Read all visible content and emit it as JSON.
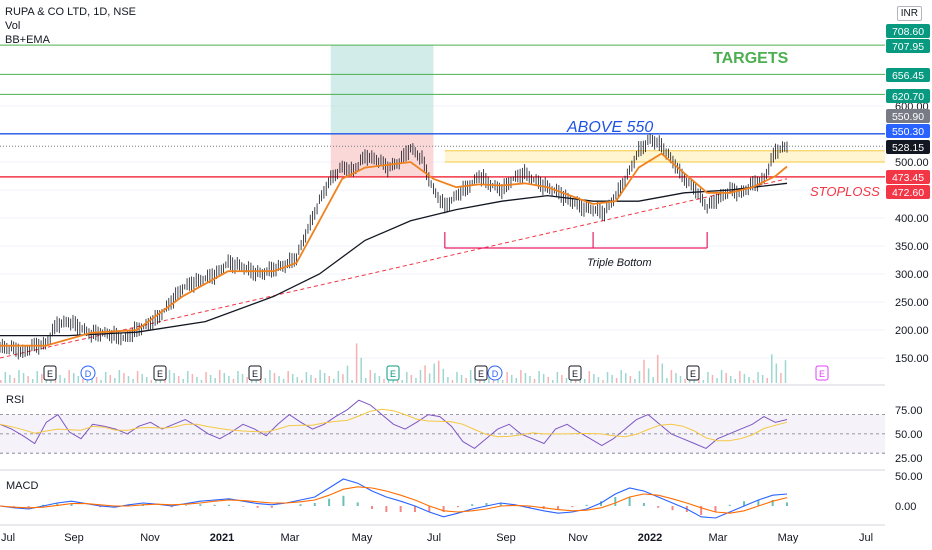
{
  "symbol_title": "RUPA & CO LTD, 1D, NSE",
  "indicator_vol": "Vol",
  "indicator_bb": "BB+EMA",
  "currency": "INR",
  "rsi_label": "RSI",
  "macd_label": "MACD",
  "annotations": {
    "targets": "TARGETS",
    "above": "ABOVE 550",
    "stoploss": "STOPLOSS",
    "pattern": "Triple Bottom"
  },
  "colors": {
    "target_line": "#4caf50",
    "resistance_line": "#1e53e5",
    "stop_line": "#f23645",
    "ema": "#f0821e",
    "sma": "#131722",
    "rsi": "#7e57c2",
    "rsi_signal": "#f5c842",
    "macd": "#2962ff",
    "macd_signal": "#ff6d00",
    "price_tag": "#131722",
    "target_tag": "#089981",
    "stop_tag": "#f23645",
    "resist_tag": "#2962ff",
    "grey_tag": "#787b86"
  },
  "events": [
    {
      "x": "Aug '20",
      "label": "E"
    },
    {
      "x": "Aug '20",
      "label": "D"
    },
    {
      "x": "Nov '20",
      "label": "E"
    },
    {
      "x": "Feb '21",
      "label": "E"
    },
    {
      "x": "May '21",
      "label": "E"
    },
    {
      "x": "Aug '21",
      "label": "E"
    },
    {
      "x": "Aug '21",
      "label": "D"
    },
    {
      "x": "Nov '21",
      "label": "E"
    },
    {
      "x": "Feb '22",
      "label": "E"
    },
    {
      "x": "May '22",
      "label": "E"
    }
  ],
  "chart_data": {
    "type": "candlestick",
    "title": "RUPA & CO LTD, 1D, NSE",
    "x_tick_labels": [
      "Jul",
      "Sep",
      "Nov",
      "2021",
      "Mar",
      "May",
      "Jul",
      "Sep",
      "Nov",
      "2022",
      "Mar",
      "May",
      "Jul"
    ],
    "y_tick_labels": [
      "600.00",
      "550.00",
      "500.00",
      "450.00",
      "400.00",
      "350.00",
      "300.00",
      "250.00",
      "200.00",
      "150.00"
    ],
    "ylim": [
      110,
      720
    ],
    "price_axis_tags": [
      {
        "value": "708.60",
        "kind": "target"
      },
      {
        "value": "707.95",
        "kind": "target"
      },
      {
        "value": "656.45",
        "kind": "target"
      },
      {
        "value": "620.70",
        "kind": "target"
      },
      {
        "value": "550.90",
        "kind": "grey"
      },
      {
        "value": "550.30",
        "kind": "resist"
      },
      {
        "value": "528.15",
        "kind": "price"
      },
      {
        "value": "473.45",
        "kind": "stop"
      },
      {
        "value": "472.60",
        "kind": "stop"
      }
    ],
    "horizontal_levels": [
      {
        "value": 708.6,
        "kind": "target"
      },
      {
        "value": 656.45,
        "kind": "target"
      },
      {
        "value": 620.7,
        "kind": "target"
      },
      {
        "value": 550.3,
        "kind": "resist"
      },
      {
        "value": 473.45,
        "kind": "stop"
      }
    ],
    "price_path": [
      [
        0,
        170
      ],
      [
        5,
        168
      ],
      [
        10,
        160
      ],
      [
        15,
        172
      ],
      [
        20,
        175
      ],
      [
        25,
        210
      ],
      [
        30,
        215
      ],
      [
        35,
        205
      ],
      [
        40,
        192
      ],
      [
        45,
        195
      ],
      [
        50,
        190
      ],
      [
        55,
        185
      ],
      [
        60,
        200
      ],
      [
        65,
        210
      ],
      [
        70,
        225
      ],
      [
        75,
        250
      ],
      [
        80,
        275
      ],
      [
        85,
        285
      ],
      [
        90,
        292
      ],
      [
        95,
        300
      ],
      [
        100,
        320
      ],
      [
        105,
        315
      ],
      [
        110,
        305
      ],
      [
        115,
        300
      ],
      [
        120,
        310
      ],
      [
        125,
        315
      ],
      [
        130,
        330
      ],
      [
        135,
        380
      ],
      [
        140,
        430
      ],
      [
        145,
        470
      ],
      [
        150,
        490
      ],
      [
        155,
        485
      ],
      [
        160,
        510
      ],
      [
        165,
        505
      ],
      [
        170,
        490
      ],
      [
        175,
        500
      ],
      [
        180,
        525
      ],
      [
        185,
        505
      ],
      [
        190,
        450
      ],
      [
        195,
        420
      ],
      [
        200,
        440
      ],
      [
        205,
        455
      ],
      [
        210,
        475
      ],
      [
        215,
        460
      ],
      [
        220,
        450
      ],
      [
        225,
        470
      ],
      [
        230,
        480
      ],
      [
        235,
        465
      ],
      [
        240,
        455
      ],
      [
        245,
        445
      ],
      [
        250,
        430
      ],
      [
        255,
        420
      ],
      [
        260,
        415
      ],
      [
        265,
        410
      ],
      [
        270,
        440
      ],
      [
        275,
        475
      ],
      [
        280,
        520
      ],
      [
        285,
        540
      ],
      [
        290,
        530
      ],
      [
        295,
        500
      ],
      [
        300,
        470
      ],
      [
        305,
        450
      ],
      [
        310,
        420
      ],
      [
        315,
        435
      ],
      [
        320,
        450
      ],
      [
        325,
        445
      ],
      [
        330,
        460
      ],
      [
        335,
        470
      ],
      [
        340,
        520
      ],
      [
        345,
        528
      ]
    ],
    "ema_path": [
      [
        0,
        172
      ],
      [
        20,
        172
      ],
      [
        40,
        195
      ],
      [
        60,
        200
      ],
      [
        80,
        260
      ],
      [
        100,
        305
      ],
      [
        120,
        305
      ],
      [
        130,
        320
      ],
      [
        140,
        395
      ],
      [
        150,
        470
      ],
      [
        160,
        490
      ],
      [
        170,
        495
      ],
      [
        180,
        500
      ],
      [
        190,
        470
      ],
      [
        200,
        455
      ],
      [
        210,
        460
      ],
      [
        220,
        458
      ],
      [
        230,
        462
      ],
      [
        240,
        455
      ],
      [
        250,
        440
      ],
      [
        260,
        425
      ],
      [
        270,
        430
      ],
      [
        280,
        490
      ],
      [
        290,
        515
      ],
      [
        300,
        480
      ],
      [
        310,
        445
      ],
      [
        320,
        445
      ],
      [
        330,
        455
      ],
      [
        340,
        475
      ],
      [
        345,
        492
      ]
    ],
    "sma_path": [
      [
        0,
        190
      ],
      [
        30,
        190
      ],
      [
        60,
        196
      ],
      [
        90,
        215
      ],
      [
        120,
        260
      ],
      [
        140,
        300
      ],
      [
        160,
        360
      ],
      [
        180,
        395
      ],
      [
        200,
        415
      ],
      [
        220,
        430
      ],
      [
        240,
        440
      ],
      [
        260,
        430
      ],
      [
        280,
        430
      ],
      [
        300,
        445
      ],
      [
        320,
        450
      ],
      [
        345,
        462
      ]
    ],
    "trend_line": {
      "from": [
        0,
        150
      ],
      "to": [
        345,
        470
      ]
    },
    "triple_bottom_lows": [
      [
        195,
        390
      ],
      [
        260,
        395
      ],
      [
        310,
        398
      ]
    ],
    "buy_zone": {
      "x_from": 145,
      "x_to": 190,
      "y_from": 473.45,
      "y_to": 708.6
    },
    "rsi": {
      "y_tick_labels": [
        "75.00",
        "50.00",
        "25.00"
      ],
      "levels": [
        70,
        50,
        30
      ],
      "values": [
        60,
        55,
        48,
        40,
        62,
        70,
        52,
        45,
        60,
        58,
        55,
        50,
        58,
        62,
        55,
        60,
        65,
        58,
        50,
        45,
        52,
        60,
        55,
        48,
        60,
        70,
        62,
        55,
        60,
        68,
        75,
        85,
        80,
        70,
        60,
        55,
        62,
        70,
        68,
        58,
        42,
        35,
        45,
        55,
        60,
        50,
        45,
        40,
        55,
        60,
        52,
        45,
        38,
        45,
        55,
        65,
        70,
        60,
        50,
        45,
        40,
        35,
        45,
        50,
        55,
        60,
        68,
        62,
        65
      ]
    },
    "macd": {
      "y_tick_labels": [
        "50.00",
        "0.00"
      ],
      "macd_values": [
        0,
        -3,
        -5,
        0,
        5,
        8,
        4,
        0,
        -2,
        2,
        5,
        3,
        0,
        4,
        8,
        10,
        12,
        8,
        4,
        2,
        5,
        10,
        15,
        30,
        45,
        38,
        25,
        15,
        8,
        0,
        -10,
        -18,
        -12,
        -5,
        0,
        5,
        2,
        -3,
        -8,
        -12,
        -10,
        -5,
        5,
        20,
        30,
        25,
        15,
        5,
        -5,
        -18,
        -20,
        -10,
        0,
        10,
        18,
        20
      ],
      "signal_values": [
        0,
        -2,
        -3,
        -2,
        1,
        4,
        4,
        2,
        0,
        0,
        2,
        3,
        2,
        3,
        5,
        8,
        10,
        9,
        7,
        5,
        5,
        7,
        10,
        18,
        28,
        32,
        30,
        25,
        18,
        10,
        0,
        -8,
        -10,
        -8,
        -5,
        0,
        1,
        0,
        -3,
        -6,
        -8,
        -7,
        -3,
        5,
        15,
        20,
        18,
        12,
        5,
        -3,
        -10,
        -12,
        -8,
        0,
        8,
        14
      ]
    }
  }
}
